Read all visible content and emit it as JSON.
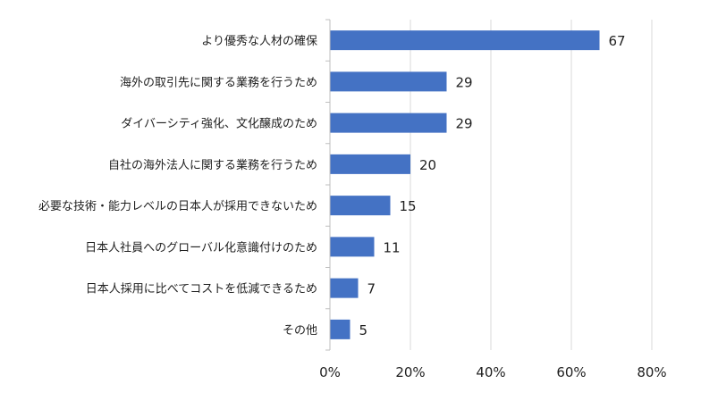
{
  "chart_data": {
    "type": "bar",
    "orientation": "horizontal",
    "categories": [
      "より優秀な人材の確保",
      "海外の取引先に関する業務を行うため",
      "ダイバーシティ強化、文化醸成のため",
      "自社の海外法人に関する業務を行うため",
      "必要な技術・能力レベルの日本人が採用できないため",
      "日本人社員へのグローバル化意識付けのため",
      "日本人採用に比べてコストを低減できるため",
      "その他"
    ],
    "values": [
      67,
      29,
      29,
      20,
      15,
      11,
      7,
      5
    ],
    "xlim": [
      0,
      80
    ],
    "x_ticks": [
      0,
      20,
      40,
      60,
      80
    ],
    "x_tick_labels": [
      "0%",
      "20%",
      "40%",
      "60%",
      "80%"
    ],
    "title": "",
    "xlabel": "",
    "ylabel": "",
    "grid": "vertical",
    "legend": "none",
    "data_labels": true,
    "bar_color": "#4472C4",
    "grid_color": "#D9D9D9",
    "axis_color": "#BFBFBF",
    "text_color": "#1F1F1F"
  }
}
